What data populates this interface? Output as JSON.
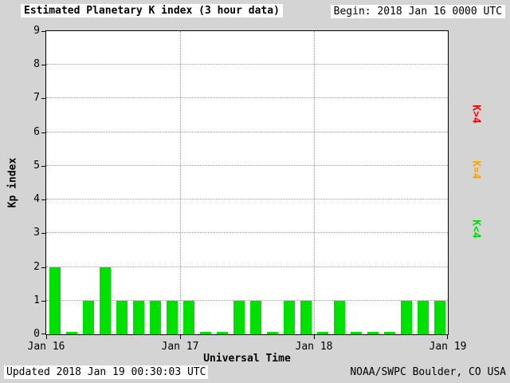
{
  "title": "Estimated Planetary K index (3 hour data)",
  "begin": {
    "label": "Begin:",
    "value": "2018 Jan 16 0000 UTC"
  },
  "footer": {
    "updated": "Updated 2018 Jan 19 00:30:03 UTC",
    "credit": "NOAA/SWPC Boulder, CO USA"
  },
  "legend": [
    {
      "label": "K>4",
      "color": "#ff0000"
    },
    {
      "label": "K=4",
      "color": "#ffa500"
    },
    {
      "label": "K<4",
      "color": "#00e000"
    }
  ],
  "colors": {
    "background": "#d4d4d4",
    "plot_background": "#ffffff",
    "bar_green": "#00e000",
    "bar_yellow": "#ffa500",
    "bar_red": "#ff0000",
    "grid": "#999999",
    "text": "#000000"
  },
  "chart_data": {
    "type": "bar",
    "title": "Estimated Planetary K index (3 hour data)",
    "xlabel": "Universal Time",
    "ylabel": "Kp index",
    "ylim": [
      0,
      9
    ],
    "yticks": [
      0,
      1,
      2,
      3,
      4,
      5,
      6,
      7,
      8,
      9
    ],
    "x_day_ticks": [
      "Jan 16",
      "Jan 17",
      "Jan 18",
      "Jan 19"
    ],
    "bar_interval_hours": 3,
    "grid": true,
    "color_rule": "green if Kp<4, yellow if Kp=4, red if Kp>4",
    "values": [
      2,
      0,
      1,
      2,
      1,
      1,
      1,
      1,
      1,
      0,
      0,
      1,
      1,
      0,
      1,
      1,
      0,
      1,
      0,
      0,
      0,
      1,
      1,
      1
    ]
  }
}
